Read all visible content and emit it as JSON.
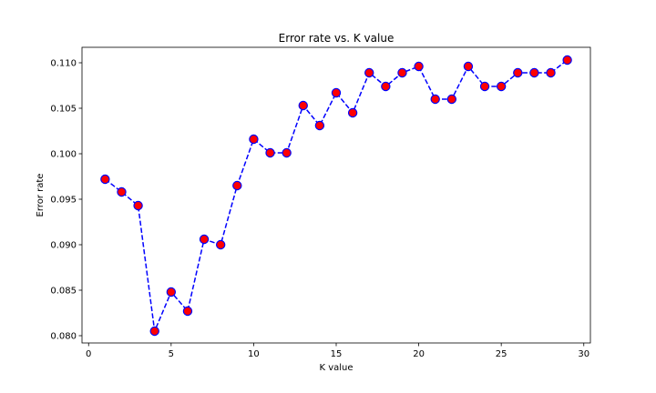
{
  "chart_data": {
    "type": "line",
    "title": "Error rate vs. K value",
    "xlabel": "K value",
    "ylabel": "Error rate",
    "xlim": [
      -0.4,
      30.4
    ],
    "ylim": [
      0.0792,
      0.1117
    ],
    "xticks": [
      0,
      5,
      10,
      15,
      20,
      25,
      30
    ],
    "yticks": [
      0.08,
      0.085,
      0.09,
      0.095,
      0.1,
      0.105,
      0.11
    ],
    "ytick_labels": [
      "0.080",
      "0.085",
      "0.090",
      "0.095",
      "0.100",
      "0.105",
      "0.110"
    ],
    "grid": false,
    "series": [
      {
        "name": "Error rate",
        "line_color": "#0000ff",
        "line_style": "dashed",
        "marker": "circle",
        "marker_face": "#ff0000",
        "marker_edge": "#0000ff",
        "x": [
          1,
          2,
          3,
          4,
          5,
          6,
          7,
          8,
          9,
          10,
          11,
          12,
          13,
          14,
          15,
          16,
          17,
          18,
          19,
          20,
          21,
          22,
          23,
          24,
          25,
          26,
          27,
          28,
          29
        ],
        "values": [
          0.0972,
          0.0958,
          0.0943,
          0.0805,
          0.0848,
          0.0827,
          0.0906,
          0.09,
          0.0965,
          0.1016,
          0.1001,
          0.1001,
          0.1053,
          0.1031,
          0.1067,
          0.1045,
          0.1089,
          0.1074,
          0.1089,
          0.1096,
          0.106,
          0.106,
          0.1096,
          0.1074,
          0.1074,
          0.1089,
          0.1089,
          0.1089,
          0.1103
        ]
      }
    ]
  }
}
